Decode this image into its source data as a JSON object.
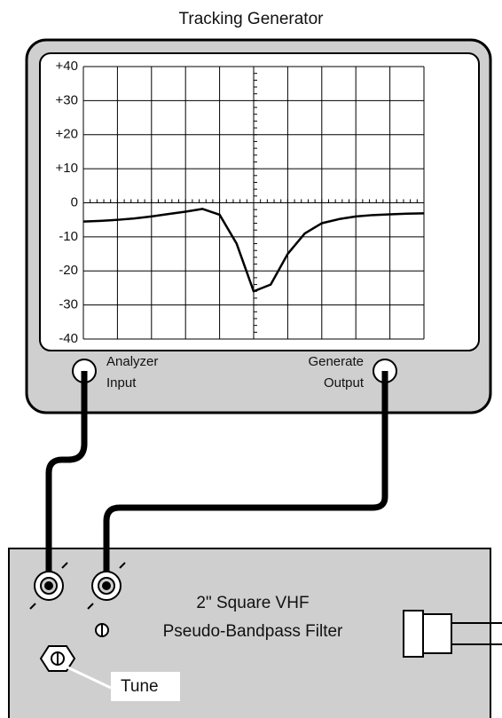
{
  "title": "Tracking Generator",
  "chart_data": {
    "type": "line",
    "categories": [
      null,
      null,
      null,
      null,
      null,
      null,
      null,
      null,
      null,
      null,
      null,
      null,
      null,
      null,
      null,
      null,
      null,
      null,
      null,
      null,
      null
    ],
    "values": [
      -5.5,
      -5.3,
      -5,
      -4.6,
      -4,
      -3.3,
      -2.6,
      -1.8,
      -3.5,
      -12,
      -26,
      -24,
      -15,
      -9,
      -6,
      -4.8,
      -4,
      -3.6,
      -3.4,
      -3.2,
      -3.1
    ],
    "color": "#000000",
    "ylim": [
      -40,
      40
    ],
    "yticks": [
      {
        "value": 40,
        "label": "+40"
      },
      {
        "value": 30,
        "label": "+30"
      },
      {
        "value": 20,
        "label": "+20"
      },
      {
        "value": 10,
        "label": "+10"
      },
      0,
      -10,
      -20,
      -30,
      -40
    ],
    "grid": true
  },
  "analyzer_input": [
    "Analyzer",
    "Input"
  ],
  "generate_output": [
    "Generate",
    "Output"
  ],
  "filter": {
    "label": [
      "2\" Square VHF",
      "Pseudo-Bandpass Filter"
    ],
    "tune": "Tune"
  }
}
